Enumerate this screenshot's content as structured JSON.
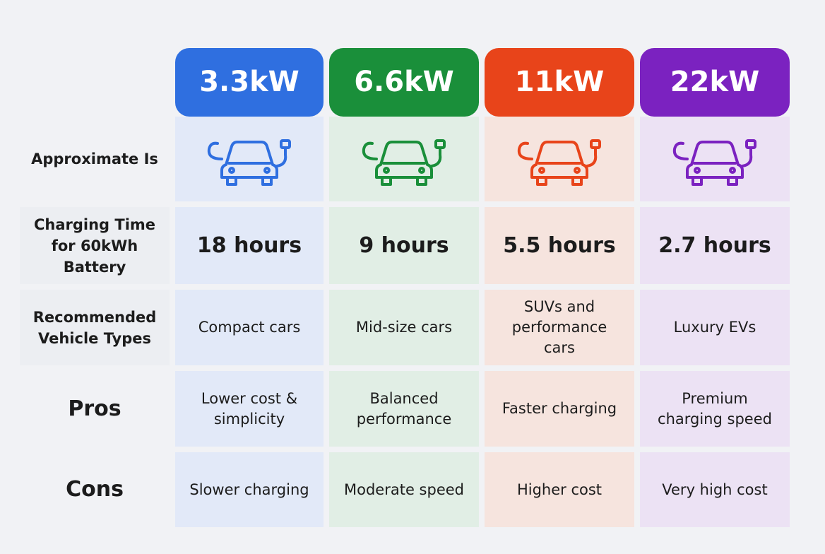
{
  "table": {
    "headers": [
      "3.3kW",
      "6.6kW",
      "11kW",
      "22kW"
    ],
    "rows": [
      {
        "label": "Approximate Is"
      },
      {
        "label": "Charging Time for 60kWh Battery",
        "cells": [
          "18 hours",
          "9 hours",
          "5.5 hours",
          "2.7 hours"
        ]
      },
      {
        "label": "Recommended Vehicle Types",
        "cells": [
          "Compact cars",
          "Mid-size cars",
          "SUVs and performance cars",
          "Luxury EVs"
        ]
      },
      {
        "label": "Pros",
        "cells": [
          "Lower cost & simplicity",
          "Balanced performance",
          "Faster charging",
          "Premium charging speed"
        ]
      },
      {
        "label": "Cons",
        "cells": [
          "Slower charging",
          "Moderate speed",
          "Higher cost",
          "Very high cost"
        ]
      }
    ]
  }
}
